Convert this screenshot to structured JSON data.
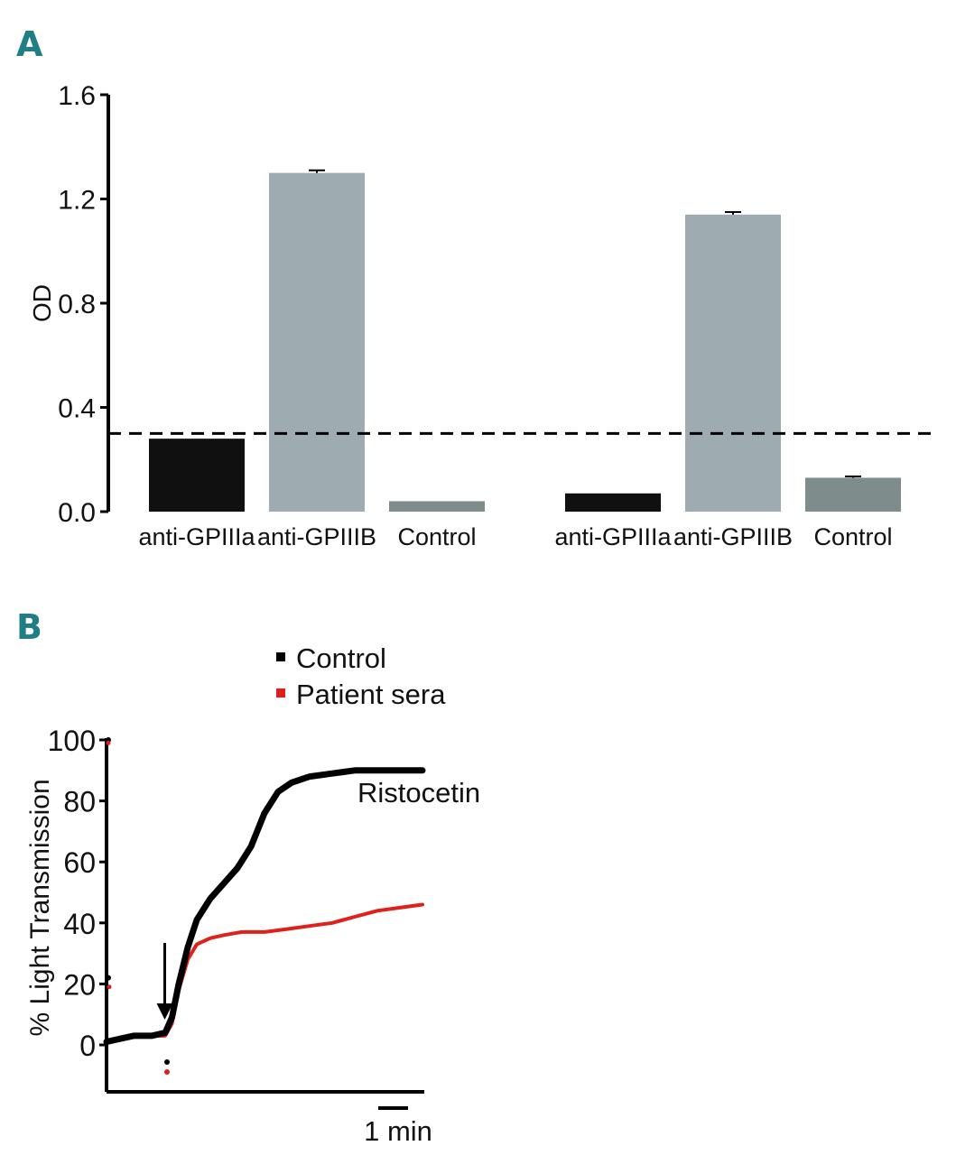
{
  "panels": {
    "a": {
      "letter": "A"
    },
    "b": {
      "letter": "B"
    }
  },
  "colors": {
    "panel_letter": "#1f7f84",
    "anti_GPIIIa_bar": "#101010",
    "anti_GPIIIB_bar": "#9eabb0",
    "control_bar": "#7e8c8c",
    "control_series": "#000000",
    "patient_series": "#e0201b"
  },
  "chart_data": [
    {
      "type": "bar",
      "title": "",
      "ylabel": "OD",
      "xlabel": "",
      "ylim": [
        0.0,
        1.6
      ],
      "yticks": [
        "0.0",
        "0.4",
        "0.8",
        "1.2",
        "1.6"
      ],
      "threshold": 0.3,
      "groups": [
        {
          "bars": [
            {
              "label": "anti-GPIIIa",
              "value": 0.28,
              "error": 0.0,
              "color_key": "anti_GPIIIa_bar"
            },
            {
              "label": "anti-GPIIIB",
              "value": 1.3,
              "error": 0.01,
              "color_key": "anti_GPIIIB_bar"
            },
            {
              "label": "Control",
              "value": 0.04,
              "error": 0.0,
              "color_key": "control_bar"
            }
          ]
        },
        {
          "bars": [
            {
              "label": "anti-GPIIIa",
              "value": 0.07,
              "error": 0.0,
              "color_key": "anti_GPIIIa_bar"
            },
            {
              "label": "anti-GPIIIB",
              "value": 1.14,
              "error": 0.01,
              "color_key": "anti_GPIIIB_bar"
            },
            {
              "label": "Control",
              "value": 0.13,
              "error": 0.005,
              "color_key": "control_bar"
            }
          ]
        }
      ]
    },
    {
      "type": "line",
      "title": "",
      "ylabel": "% Light Transmission",
      "xlabel": "",
      "ylim": [
        -15,
        100
      ],
      "yticks": [
        "0",
        "20",
        "40",
        "60",
        "80",
        "100"
      ],
      "xlim": [
        0,
        7.5
      ],
      "scalebar_label": "1 min",
      "scalebar_minutes": 1,
      "annotation": "Ristocetin",
      "agonist_time": 1.3,
      "legend": [
        "Control",
        "Patient sera"
      ],
      "series": [
        {
          "name": "Control",
          "color_key": "control_series",
          "x": [
            0,
            0.3,
            0.6,
            1.0,
            1.3,
            1.45,
            1.6,
            1.8,
            2.0,
            2.3,
            2.6,
            2.9,
            3.2,
            3.5,
            3.8,
            4.1,
            4.5,
            5.0,
            5.5,
            6.0,
            6.5,
            7.0
          ],
          "y": [
            1,
            2,
            3,
            3,
            4,
            9,
            20,
            32,
            41,
            48,
            53,
            58,
            65,
            76,
            83,
            86,
            88,
            89,
            90,
            90,
            90,
            90
          ]
        },
        {
          "name": "Patient sera",
          "color_key": "patient_series",
          "x": [
            0,
            0.3,
            0.6,
            1.0,
            1.3,
            1.45,
            1.6,
            1.8,
            2.0,
            2.3,
            2.6,
            3.0,
            3.5,
            4.0,
            4.5,
            5.0,
            5.5,
            6.0,
            6.5,
            7.0
          ],
          "y": [
            1,
            2,
            3,
            3,
            3,
            7,
            18,
            28,
            33,
            35,
            36,
            37,
            37,
            38,
            39,
            40,
            42,
            44,
            45,
            46
          ]
        }
      ]
    }
  ]
}
